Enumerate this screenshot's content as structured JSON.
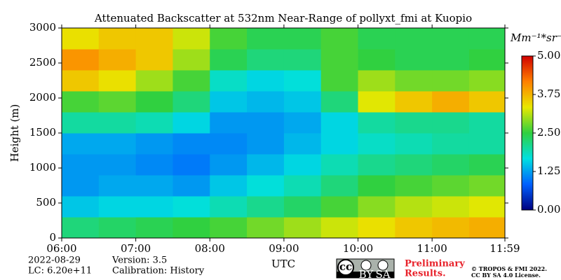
{
  "chart_data": {
    "type": "heatmap",
    "title": "Attenuated Backscatter at 532nm Near-Range of pollyxt_fmi at Kuopio",
    "ylabel": "Height (m)",
    "xlabel": "UTC",
    "xlim": [
      6,
      11.983
    ],
    "xticks": [
      {
        "value": 6,
        "label": "06:00"
      },
      {
        "value": 7,
        "label": "07:00"
      },
      {
        "value": 8,
        "label": "08:00"
      },
      {
        "value": 9,
        "label": "09:00"
      },
      {
        "value": 10,
        "label": "10:00"
      },
      {
        "value": 11,
        "label": "11:00"
      },
      {
        "value": 11.983,
        "label": "11:59"
      }
    ],
    "ylim": [
      0,
      3000
    ],
    "yticks": [
      0,
      500,
      1000,
      1500,
      2000,
      2500,
      3000
    ],
    "x_bins": [
      6,
      6.5,
      7,
      7.5,
      8,
      8.5,
      9,
      9.5,
      10,
      10.5,
      11,
      11.5,
      11.983
    ],
    "y_bins": [
      0,
      300,
      600,
      900,
      1200,
      1500,
      1800,
      2100,
      2400,
      2700,
      3000
    ],
    "z": [
      [
        2.2,
        2.3,
        2.4,
        2.5,
        2.6,
        2.8,
        3.0,
        3.2,
        3.4,
        3.6,
        3.7,
        3.8
      ],
      [
        1.5,
        1.6,
        1.6,
        1.7,
        1.9,
        2.1,
        2.3,
        2.6,
        2.9,
        3.1,
        3.2,
        3.3
      ],
      [
        1.2,
        1.3,
        1.3,
        1.2,
        1.5,
        1.7,
        1.9,
        2.2,
        2.5,
        2.6,
        2.7,
        2.8
      ],
      [
        1.2,
        1.2,
        1.1,
        1.0,
        1.2,
        1.4,
        1.6,
        1.9,
        2.1,
        2.2,
        2.3,
        2.4
      ],
      [
        1.3,
        1.3,
        1.2,
        1.1,
        1.1,
        1.2,
        1.4,
        1.6,
        1.8,
        1.9,
        2.0,
        2.0
      ],
      [
        2.0,
        2.0,
        1.9,
        1.6,
        1.2,
        1.2,
        1.3,
        1.6,
        2.0,
        2.1,
        2.1,
        2.0
      ],
      [
        2.6,
        2.7,
        2.5,
        2.2,
        1.5,
        1.4,
        1.5,
        2.2,
        3.3,
        3.6,
        3.8,
        3.6
      ],
      [
        3.6,
        3.4,
        3.0,
        2.6,
        1.8,
        1.6,
        1.7,
        2.6,
        3.0,
        2.8,
        2.8,
        2.9
      ],
      [
        4.0,
        3.8,
        3.6,
        3.0,
        2.4,
        2.2,
        2.2,
        2.6,
        2.5,
        2.4,
        2.4,
        2.5
      ],
      [
        3.4,
        3.6,
        3.6,
        3.2,
        2.6,
        2.4,
        2.4,
        2.6,
        2.4,
        2.4,
        2.4,
        2.4
      ]
    ],
    "colormap": [
      "#00007f",
      "#0060ff",
      "#00e0e0",
      "#30d040",
      "#e8e800",
      "#ff8000",
      "#d00000"
    ],
    "clim": [
      0,
      5
    ],
    "cticks": [
      {
        "value": 0,
        "label": "0.00"
      },
      {
        "value": 1.25,
        "label": "1.25"
      },
      {
        "value": 2.5,
        "label": "2.50"
      },
      {
        "value": 3.75,
        "label": "3.75"
      },
      {
        "value": 5,
        "label": "5.00"
      }
    ],
    "clabel": "Mm⁻¹*sr⁻¹",
    "notes": {
      "date": "2022-08-29",
      "lc": "LC: 6.20e+11",
      "version": "Version: 3.5",
      "calibration": "Calibration: History",
      "preliminary_1": "Preliminary",
      "preliminary_2": "Results.",
      "copyright": "© TROPOS & FMI 2022.",
      "license": "CC BY SA 4.0 License.",
      "badge_cc": "cc",
      "badge_by": "BY",
      "badge_sa": "SA"
    }
  }
}
